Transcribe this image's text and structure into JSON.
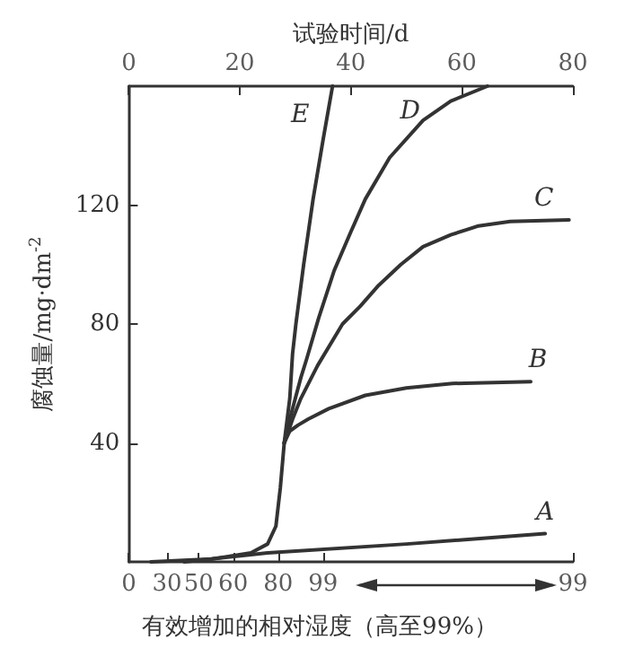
{
  "chart_data": {
    "type": "line",
    "xlabel": "试验时间/d",
    "ylabel": "腐蚀量/mg·dm$^{-2}$",
    "xlim": [
      0,
      80
    ],
    "xticks": [
      0,
      20,
      40,
      60,
      80
    ],
    "ylim": [
      0,
      160
    ],
    "yticks": [
      40,
      80,
      120
    ],
    "series": [
      {
        "name": "D",
        "color": "#333333",
        "x": [
          4,
          15,
          22,
          25,
          26.5,
          27.3,
          28,
          29,
          30,
          31,
          32,
          34.2,
          37,
          40,
          42.6,
          47,
          53,
          58,
          64.6
        ],
        "values": [
          0,
          1,
          3,
          6,
          12,
          25,
          40,
          48,
          55,
          62,
          68,
          82,
          98,
          111,
          122,
          136,
          148.5,
          155,
          160
        ]
      },
      {
        "name": "C",
        "color": "#333333",
        "x": [
          28,
          29.5,
          31,
          34,
          38.5,
          41.7,
          45,
          49,
          53,
          58,
          63,
          68.7,
          79.3
        ],
        "values": [
          40,
          48,
          55,
          66,
          80,
          86,
          93,
          100,
          106,
          110,
          113,
          114.5,
          115
        ]
      },
      {
        "name": "B",
        "color": "#333333",
        "x": [
          28,
          29,
          30.5,
          32.3,
          36,
          42.6,
          50,
          58.3,
          72.4
        ],
        "values": [
          40,
          44,
          46,
          48,
          51.5,
          56,
          58.5,
          60,
          60.6
        ]
      },
      {
        "name": "E",
        "color": "#333333",
        "x": [
          28,
          29,
          29.5,
          30.1,
          31.5,
          33.2,
          35,
          36.7
        ],
        "values": [
          40,
          55,
          70,
          80,
          100,
          122,
          142,
          160
        ]
      },
      {
        "name": "A",
        "color": "#333333",
        "x": [
          10,
          25,
          50,
          75
        ],
        "values": [
          0,
          3,
          6,
          9.5
        ]
      }
    ],
    "annotations": [
      "0",
      "30",
      "50",
      "60",
      "80",
      "99",
      "99",
      "有效增加的相对湿度（高至99%）"
    ],
    "marker": "none",
    "line_style": "solid",
    "grid": false,
    "legend": false
  }
}
